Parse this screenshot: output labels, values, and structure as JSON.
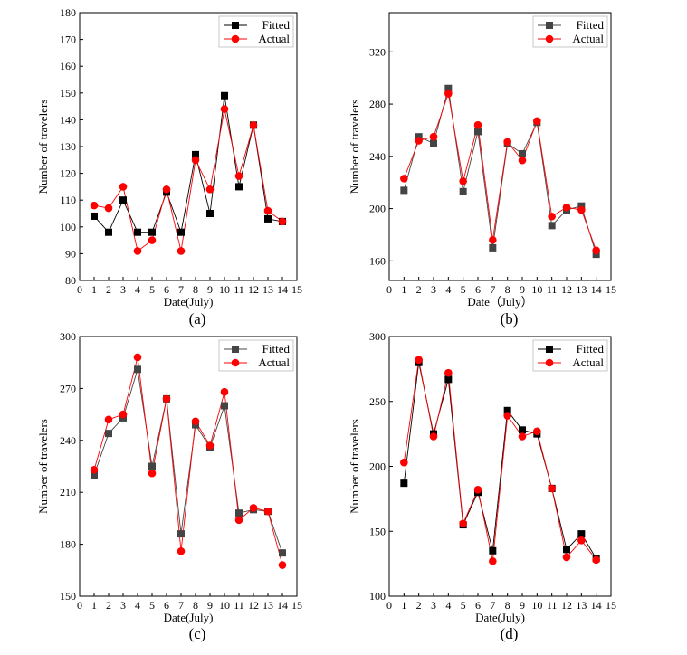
{
  "colors": {
    "fitted_a": "#000000",
    "fitted_b": "#444444",
    "actual": "#ff0000",
    "frame": "#000000",
    "legend_border": "#bbbbbb"
  },
  "chart_data": [
    {
      "id": "a",
      "type": "line",
      "panel_label": "(a)",
      "xlabel": "Date(July)",
      "ylabel": "Number of travelers",
      "xlim": [
        0,
        15
      ],
      "ylim": [
        80,
        180
      ],
      "xticks": [
        0,
        1,
        2,
        3,
        4,
        5,
        6,
        7,
        8,
        9,
        10,
        11,
        12,
        13,
        14,
        15
      ],
      "yticks": [
        80,
        90,
        100,
        110,
        120,
        130,
        140,
        150,
        160,
        170,
        180
      ],
      "x": [
        1,
        2,
        3,
        4,
        5,
        6,
        7,
        8,
        9,
        10,
        11,
        12,
        13,
        14
      ],
      "legend_position": "top-right",
      "series": [
        {
          "name": "Fitted",
          "marker": "square",
          "color_key": "fitted_a",
          "values": [
            104,
            98,
            110,
            98,
            98,
            113,
            98,
            127,
            105,
            149,
            115,
            138,
            103,
            102
          ]
        },
        {
          "name": "Actual",
          "marker": "circle",
          "color_key": "actual",
          "values": [
            108,
            107,
            115,
            91,
            95,
            114,
            91,
            125,
            114,
            144,
            119,
            138,
            106,
            102
          ]
        }
      ]
    },
    {
      "id": "b",
      "type": "line",
      "panel_label": "(b)",
      "xlabel": "Date（July）",
      "ylabel": "Number of travelers",
      "xlim": [
        0,
        15
      ],
      "ylim": [
        145,
        350
      ],
      "xticks": [
        0,
        1,
        2,
        3,
        4,
        5,
        6,
        7,
        8,
        9,
        10,
        11,
        12,
        13,
        14,
        15
      ],
      "yticks": [
        160,
        200,
        240,
        280,
        320
      ],
      "x": [
        1,
        2,
        3,
        4,
        5,
        6,
        7,
        8,
        9,
        10,
        11,
        12,
        13,
        14
      ],
      "legend_position": "top-right",
      "series": [
        {
          "name": "Fitted",
          "marker": "square",
          "color_key": "fitted_b",
          "values": [
            214,
            255,
            250,
            292,
            213,
            259,
            170,
            250,
            242,
            266,
            187,
            199,
            202,
            165
          ]
        },
        {
          "name": "Actual",
          "marker": "circle",
          "color_key": "actual",
          "values": [
            223,
            252,
            255,
            288,
            221,
            264,
            176,
            251,
            237,
            267,
            194,
            201,
            199,
            168
          ]
        }
      ]
    },
    {
      "id": "c",
      "type": "line",
      "panel_label": "(c)",
      "xlabel": "Date(July)",
      "ylabel": "Number of travelers",
      "xlim": [
        0,
        15
      ],
      "ylim": [
        150,
        300
      ],
      "xticks": [
        0,
        1,
        2,
        3,
        4,
        5,
        6,
        7,
        8,
        9,
        10,
        11,
        12,
        13,
        14,
        15
      ],
      "yticks": [
        150,
        180,
        210,
        240,
        270,
        300
      ],
      "x": [
        1,
        2,
        3,
        4,
        5,
        6,
        7,
        8,
        9,
        10,
        11,
        12,
        13,
        14
      ],
      "legend_position": "top-right",
      "series": [
        {
          "name": "Fitted",
          "marker": "square",
          "color_key": "fitted_b",
          "values": [
            220,
            244,
            253,
            281,
            225,
            264,
            186,
            249,
            236,
            260,
            198,
            200,
            199,
            175
          ]
        },
        {
          "name": "Actual",
          "marker": "circle",
          "color_key": "actual",
          "values": [
            223,
            252,
            255,
            288,
            221,
            264,
            176,
            251,
            237,
            268,
            194,
            201,
            199,
            168
          ]
        }
      ]
    },
    {
      "id": "d",
      "type": "line",
      "panel_label": "(d)",
      "xlabel": "Date(July)",
      "ylabel": "Number of travelers",
      "xlim": [
        0,
        15
      ],
      "ylim": [
        100,
        300
      ],
      "xticks": [
        0,
        1,
        2,
        3,
        4,
        5,
        6,
        7,
        8,
        9,
        10,
        11,
        12,
        13,
        14,
        15
      ],
      "yticks": [
        100,
        150,
        200,
        250,
        300
      ],
      "x": [
        1,
        2,
        3,
        4,
        5,
        6,
        7,
        8,
        9,
        10,
        11,
        12,
        13,
        14
      ],
      "legend_position": "top-right",
      "series": [
        {
          "name": "Fitted",
          "marker": "square",
          "color_key": "fitted_a",
          "values": [
            187,
            280,
            225,
            267,
            155,
            180,
            135,
            243,
            228,
            225,
            183,
            136,
            148,
            129
          ]
        },
        {
          "name": "Actual",
          "marker": "circle",
          "color_key": "actual",
          "values": [
            203,
            282,
            223,
            272,
            156,
            182,
            127,
            239,
            223,
            227,
            183,
            130,
            143,
            128
          ]
        }
      ]
    }
  ]
}
